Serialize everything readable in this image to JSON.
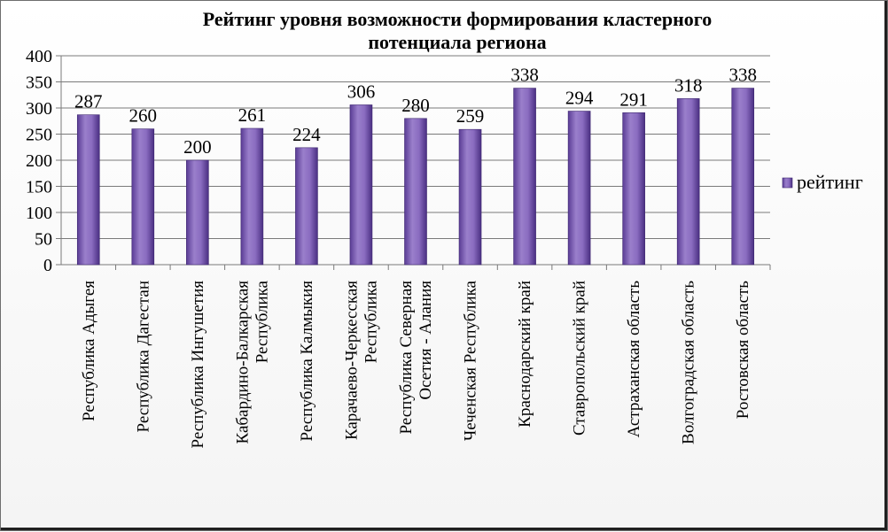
{
  "chart_data": {
    "type": "bar",
    "title_lines": [
      "Рейтинг уровня возможности формирования кластерного",
      "потенциала региона"
    ],
    "categories": [
      [
        "Республика Адыгея"
      ],
      [
        "Республика Дагестан"
      ],
      [
        "Республика Ингушетия"
      ],
      [
        "Кабардино-Балкарская",
        "Республика"
      ],
      [
        "Республика Калмыкия"
      ],
      [
        "Карачаево-Черкесская",
        "Республика"
      ],
      [
        "Республика Северная",
        "Осетия - Алания"
      ],
      [
        "Чеченская Республика"
      ],
      [
        "Краснодарский край"
      ],
      [
        "Ставропольский край"
      ],
      [
        "Астраханская область"
      ],
      [
        "Волгоградская область"
      ],
      [
        "Ростовская область"
      ]
    ],
    "series": [
      {
        "name": "рейтинг",
        "values": [
          287,
          260,
          200,
          261,
          224,
          306,
          280,
          259,
          338,
          294,
          291,
          318,
          338
        ]
      }
    ],
    "ylim": [
      0,
      400
    ],
    "yticks": [
      0,
      50,
      100,
      150,
      200,
      250,
      300,
      350,
      400
    ],
    "grid": true,
    "legend_position": "right",
    "colors": {
      "bar_light": "#b9a3da",
      "bar_mid": "#7d5db5",
      "bar_dark": "#4a2f82"
    }
  }
}
